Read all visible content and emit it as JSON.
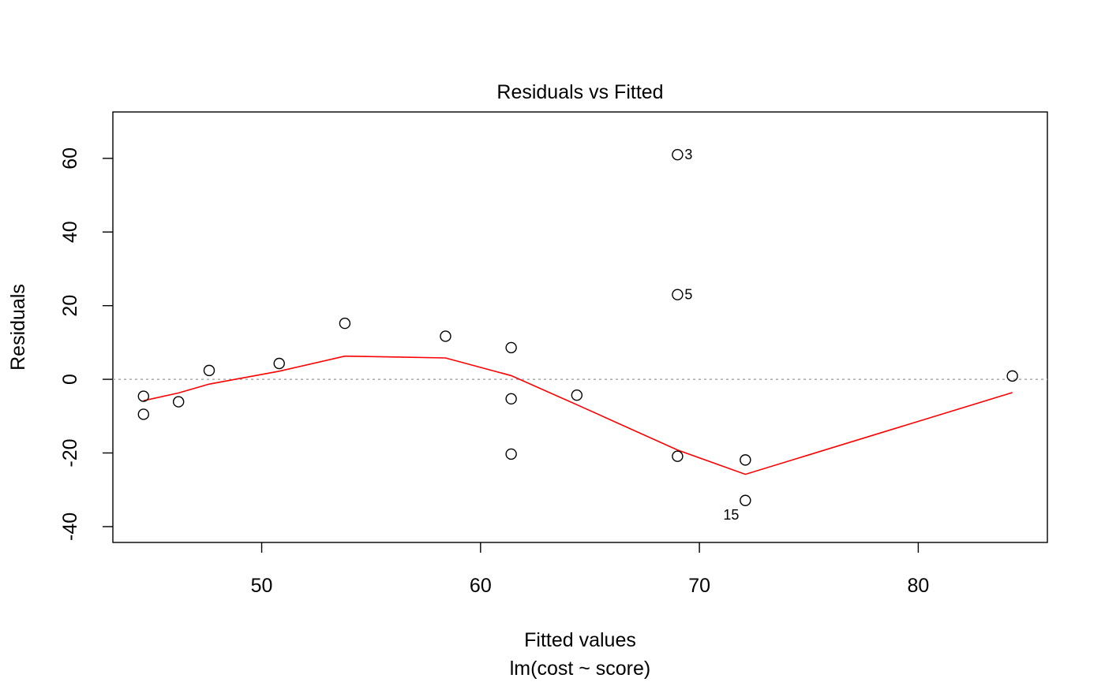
{
  "chart_data": {
    "type": "scatter",
    "title": "Residuals vs Fitted",
    "xlabel": "Fitted values",
    "subtitle": "lm(cost ~ score)",
    "ylabel": "Residuals",
    "xlim": [
      43.2,
      85.9
    ],
    "ylim": [
      -44.3,
      72.6
    ],
    "x_ticks": [
      50,
      60,
      70,
      80
    ],
    "y_ticks": [
      -40,
      -20,
      0,
      20,
      40,
      60
    ],
    "reference_line": {
      "y": 0,
      "style": "dotted",
      "color": "#aaaaaa"
    },
    "points": [
      {
        "x": 44.6,
        "y": -4.6
      },
      {
        "x": 44.6,
        "y": -9.5
      },
      {
        "x": 46.2,
        "y": -6.1
      },
      {
        "x": 47.6,
        "y": 2.4
      },
      {
        "x": 50.8,
        "y": 4.3
      },
      {
        "x": 53.8,
        "y": 15.2
      },
      {
        "x": 58.4,
        "y": 11.7
      },
      {
        "x": 61.4,
        "y": 8.6
      },
      {
        "x": 61.4,
        "y": -5.3
      },
      {
        "x": 61.4,
        "y": -20.3
      },
      {
        "x": 64.4,
        "y": -4.3
      },
      {
        "x": 69.0,
        "y": 61.0,
        "label": "3"
      },
      {
        "x": 69.0,
        "y": 23.0,
        "label": "5"
      },
      {
        "x": 69.0,
        "y": -20.9
      },
      {
        "x": 72.1,
        "y": -21.9
      },
      {
        "x": 72.1,
        "y": -32.9,
        "label": "15"
      },
      {
        "x": 84.3,
        "y": 0.9
      }
    ],
    "smooth_line": {
      "color": "#ff0000",
      "x": [
        44.6,
        46.2,
        47.6,
        50.8,
        53.8,
        58.4,
        61.4,
        64.4,
        69.0,
        72.1,
        84.3
      ],
      "y": [
        -5.8,
        -3.7,
        -1.3,
        2.2,
        6.3,
        5.8,
        1.0,
        -6.9,
        -19.2,
        -25.8,
        -3.6
      ]
    },
    "colors": {
      "points": "#000000",
      "axis": "#000000"
    }
  }
}
